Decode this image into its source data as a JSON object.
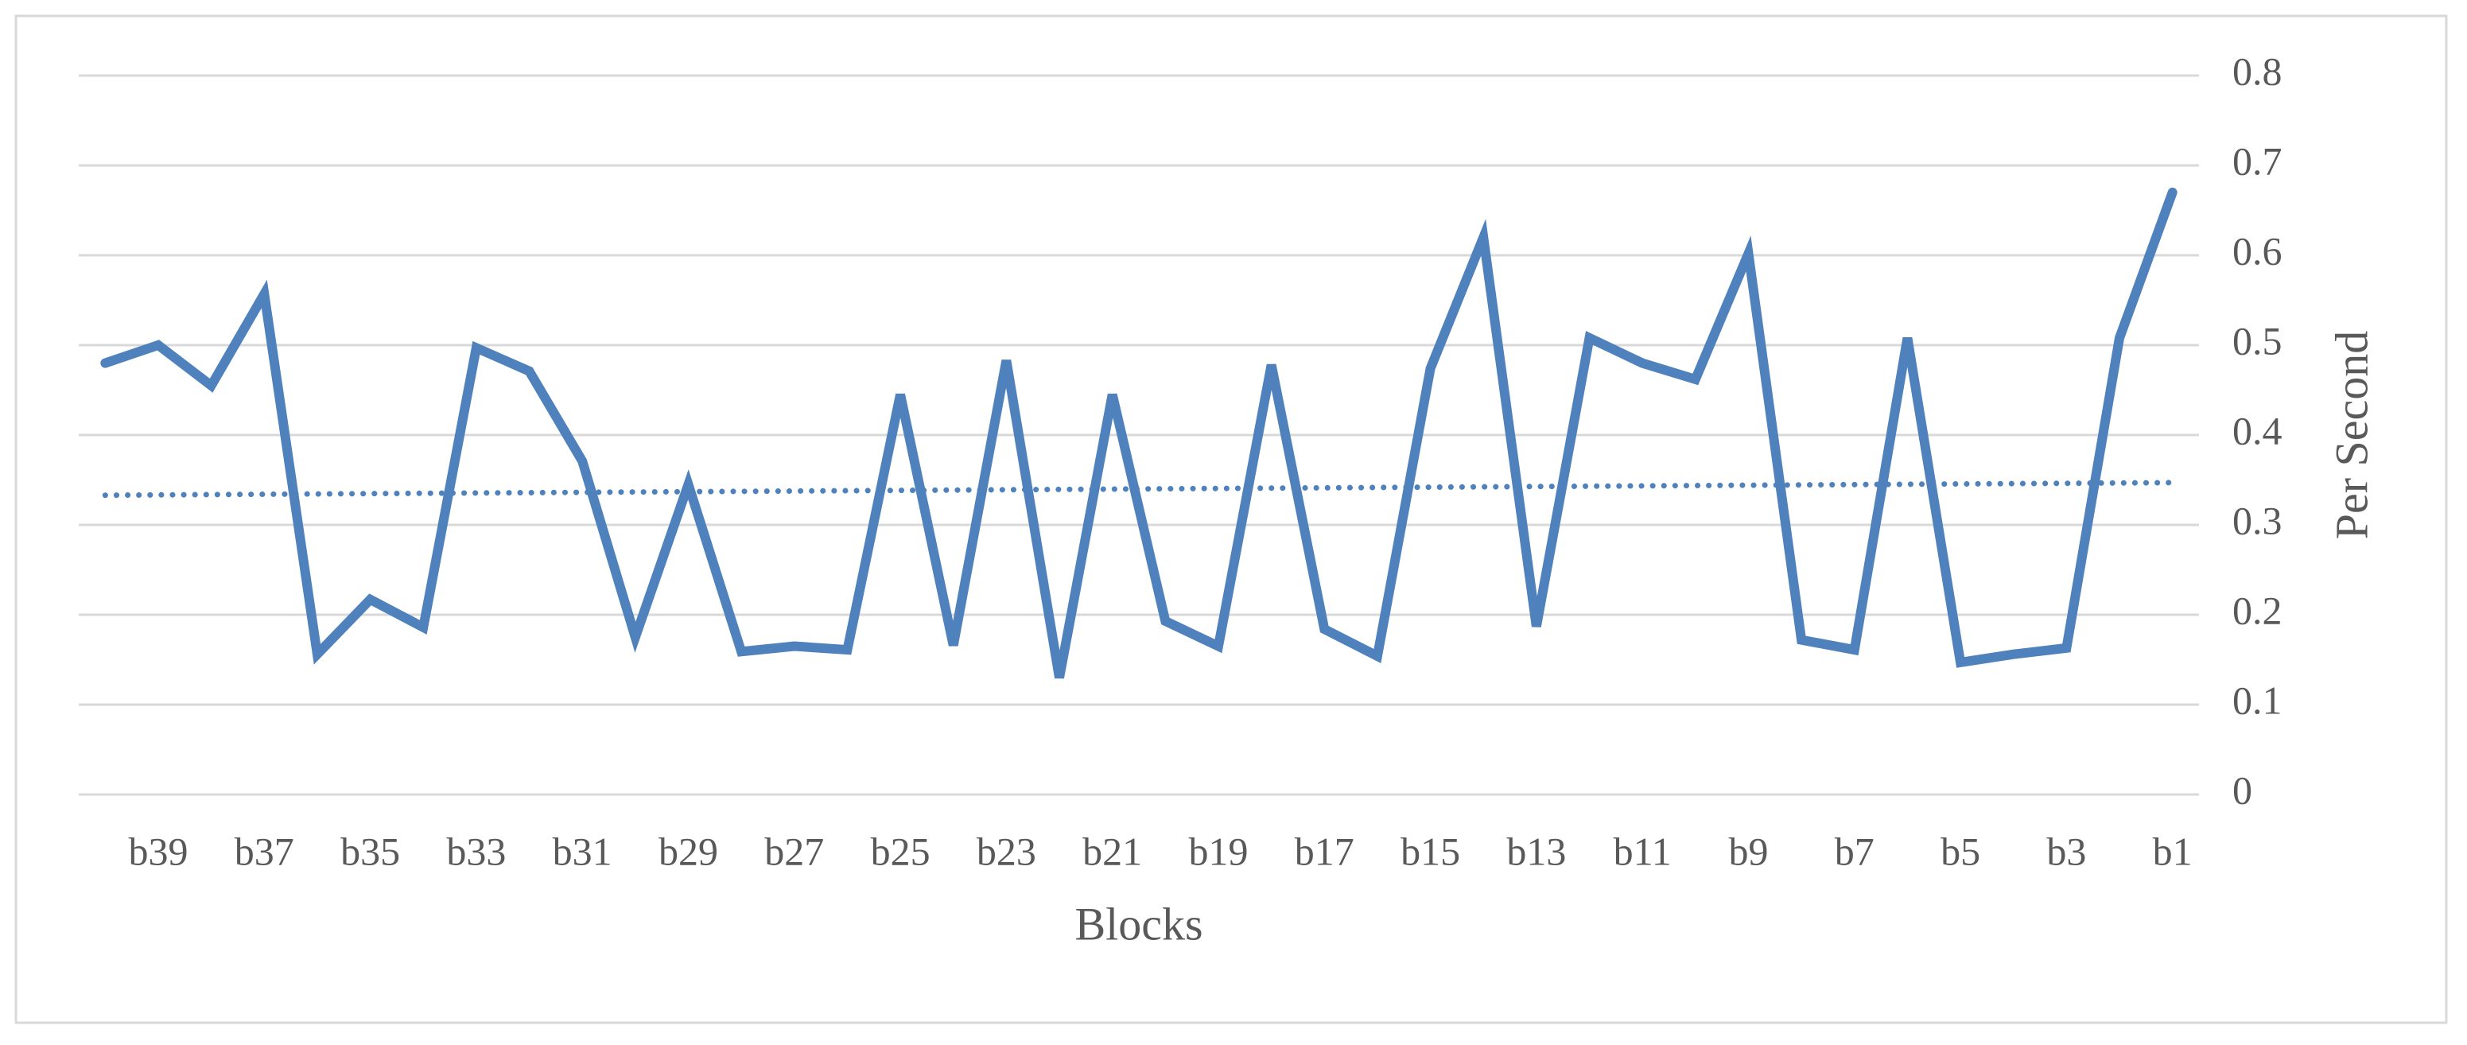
{
  "chart_data": {
    "type": "line",
    "categories": [
      null,
      "b39",
      null,
      "b37",
      null,
      "b35",
      null,
      "b33",
      null,
      "b31",
      null,
      "b29",
      null,
      "b27",
      null,
      "b25",
      null,
      "b23",
      null,
      "b21",
      null,
      "b19",
      null,
      "b17",
      null,
      "b15",
      null,
      "b13",
      null,
      "b11",
      null,
      "b9",
      null,
      "b7",
      null,
      "b5",
      null,
      "b3",
      null,
      "b1"
    ],
    "values": [
      0.48,
      0.5,
      0.455,
      0.557,
      0.156,
      0.217,
      0.186,
      0.497,
      0.471,
      0.371,
      0.175,
      0.345,
      0.159,
      0.165,
      0.161,
      0.445,
      0.166,
      0.483,
      0.13,
      0.445,
      0.193,
      0.165,
      0.478,
      0.184,
      0.154,
      0.474,
      0.62,
      0.187,
      0.508,
      0.48,
      0.462,
      0.602,
      0.172,
      0.161,
      0.508,
      0.147,
      0.156,
      0.163,
      0.508,
      0.67
    ],
    "color": "#4f81bd",
    "trendline": {
      "values": [
        0.333,
        0.347
      ],
      "color": "#4f81bd",
      "style": "dotted"
    },
    "xlabel": "Blocks",
    "ylabel": "Per Second",
    "ylim": [
      0,
      0.8
    ],
    "yticks": [
      0,
      0.1,
      0.2,
      0.3,
      0.4,
      0.5,
      0.6,
      0.7,
      0.8
    ],
    "yaxis_side": "right",
    "grid": true
  }
}
